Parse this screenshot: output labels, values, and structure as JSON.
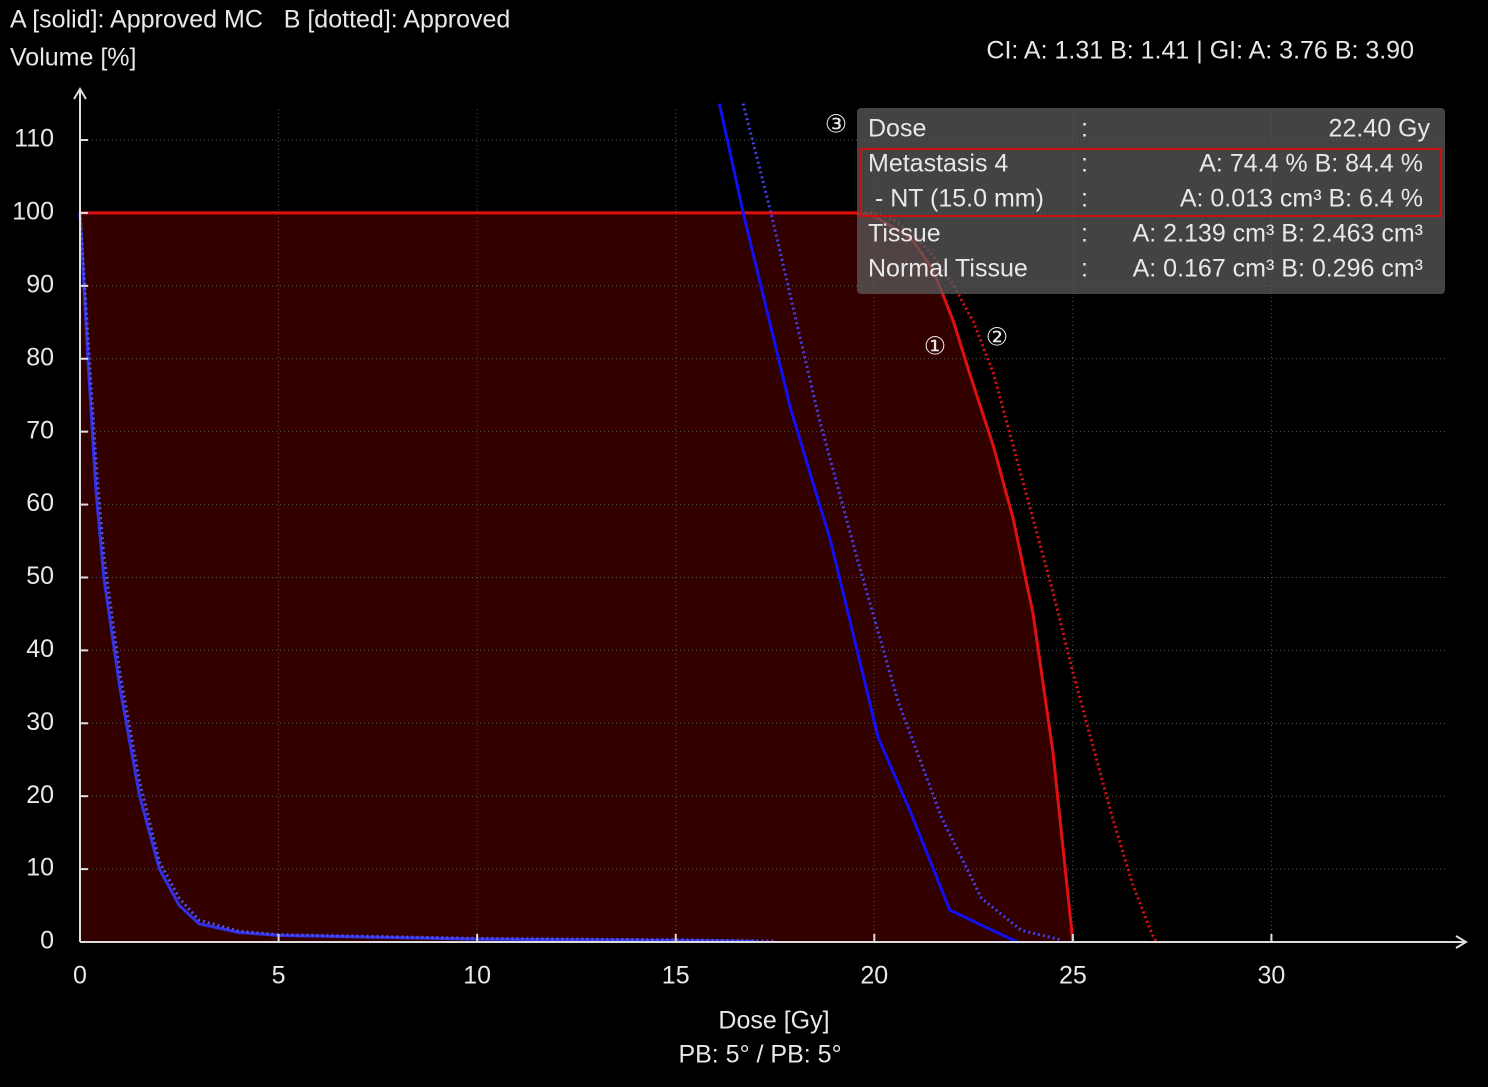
{
  "chart_data": {
    "type": "line",
    "title": "A [solid]: Approved MC   B [dotted]: Approved",
    "subtitle": "CI: A: 1.31 B: 1.41 | GI: A: 3.76 B: 3.90",
    "y_label": "Volume [%]",
    "x_label": "Dose [Gy]",
    "footer": "PB: 5° / PB: 5°",
    "xlim": [
      0,
      35
    ],
    "ylim": [
      0,
      117
    ],
    "xticks": [
      0,
      5,
      10,
      15,
      20,
      25,
      30
    ],
    "yticks": [
      0,
      10,
      20,
      30,
      40,
      50,
      60,
      70,
      80,
      90,
      100,
      110
    ],
    "grid": true,
    "series": [
      {
        "color": "#e01010",
        "style": "solid",
        "fill": "#330000",
        "x": [
          0,
          19.5,
          20,
          20.5,
          21,
          21.5,
          22,
          22.4,
          23,
          23.5,
          24,
          24.5,
          25
        ],
        "values": [
          100,
          100,
          99.5,
          98,
          96,
          92,
          85,
          78,
          68,
          58,
          45,
          26,
          0
        ]
      },
      {
        "color": "#e01010",
        "style": "dotted",
        "x": [
          0,
          20,
          20.5,
          21,
          21.5,
          22,
          22.5,
          23,
          23.4,
          24,
          24.5,
          25,
          25.5,
          26,
          26.5,
          27,
          27.1
        ],
        "values": [
          100,
          100,
          99,
          97,
          94,
          90,
          85,
          78,
          70,
          58,
          48,
          37,
          27,
          17,
          8,
          1,
          0
        ]
      },
      {
        "color": "#3030e0",
        "style": "solid",
        "x": [
          0,
          0.2,
          0.4,
          0.6,
          1,
          1.5,
          2,
          2.5,
          3,
          4,
          5,
          10,
          15,
          17
        ],
        "values": [
          100,
          80,
          62,
          50,
          35,
          20,
          10,
          5,
          2.5,
          1.3,
          0.9,
          0.4,
          0.2,
          0.1
        ]
      },
      {
        "color": "#5050f0",
        "style": "dotted",
        "x": [
          0,
          0.2,
          0.4,
          0.6,
          1,
          1.5,
          2,
          2.5,
          3,
          4,
          5,
          10,
          15,
          17.5
        ],
        "values": [
          100,
          83,
          66,
          53,
          37,
          22,
          11,
          6,
          3,
          1.5,
          1,
          0.5,
          0.3,
          0.1
        ]
      },
      {
        "color": "#1010f0",
        "style": "solid",
        "x": [
          16.1,
          16.7,
          17.9,
          18.9,
          20.1,
          20.9,
          21.9,
          22.7,
          23.6
        ],
        "values": [
          115,
          100,
          73,
          55,
          28,
          18,
          4.4,
          2.3,
          0
        ]
      },
      {
        "color": "#4040f0",
        "style": "dotted",
        "x": [
          16.7,
          17.4,
          18.6,
          19.6,
          20.6,
          21.7,
          22.7,
          23.7,
          24.7
        ],
        "values": [
          115,
          100,
          72,
          52,
          33,
          17,
          6,
          1.6,
          0.3
        ]
      }
    ],
    "markers": [
      "③",
      "①",
      "②"
    ],
    "tooltip": {
      "separator": ":",
      "rows": [
        [
          "Dose",
          "22.40 Gy"
        ],
        [
          "Metastasis 4",
          "A: 74.4 % B: 84.4 %"
        ],
        [
          " - NT (15.0 mm)",
          "A: 0.013 cm³ B: 6.4 %"
        ],
        [
          "Tissue",
          "A: 2.139 cm³ B: 2.463 cm³"
        ],
        [
          "Normal Tissue",
          "A: 0.167 cm³ B: 0.296 cm³"
        ]
      ]
    }
  }
}
